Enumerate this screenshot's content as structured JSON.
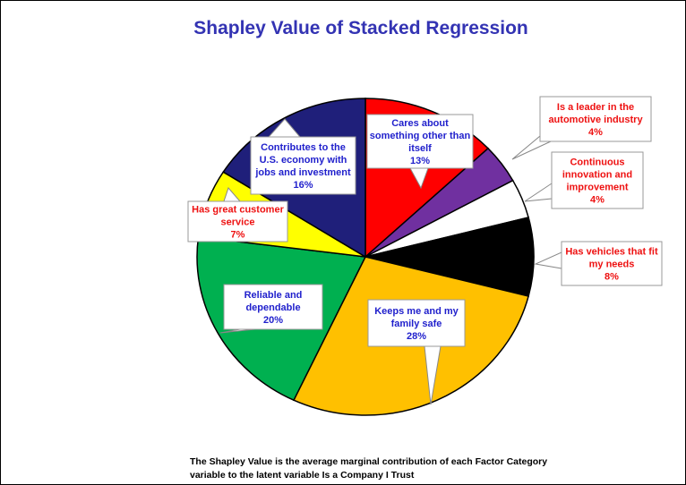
{
  "chart_data": {
    "type": "pie",
    "title": "Shapley Value of Stacked Regression",
    "slices": [
      {
        "label": "Cares about something other than itself",
        "lines": [
          "Cares about",
          "something other than",
          "itself"
        ],
        "value_label": "13%",
        "value": 13,
        "color": "#ff0000",
        "text_color": "#1f1fcc"
      },
      {
        "label": "Is a leader in the automotive industry",
        "lines": [
          "Is a leader in the",
          "automotive industry"
        ],
        "value_label": "4%",
        "value": 4,
        "color": "#7030a0",
        "text_color": "#ee1111"
      },
      {
        "label": "Continuous innovation and improvement",
        "lines": [
          "Continuous",
          "innovation and",
          "improvement"
        ],
        "value_label": "4%",
        "value": 4,
        "color": "#ffffff",
        "text_color": "#ee1111"
      },
      {
        "label": "Has vehicles that fit my needs",
        "lines": [
          "Has vehicles that fit",
          "my needs"
        ],
        "value_label": "8%",
        "value": 8,
        "color": "#000000",
        "text_color": "#ee1111"
      },
      {
        "label": "Keeps me and my family safe",
        "lines": [
          "Keeps me and my",
          "family safe"
        ],
        "value_label": "28%",
        "value": 28,
        "color": "#ffc000",
        "text_color": "#1f1fcc"
      },
      {
        "label": "Reliable and dependable",
        "lines": [
          "Reliable and",
          "dependable"
        ],
        "value_label": "20%",
        "value": 20,
        "color": "#00b050",
        "text_color": "#1f1fcc"
      },
      {
        "label": "Has great customer service",
        "lines": [
          "Has great customer",
          "service"
        ],
        "value_label": "7%",
        "value": 7,
        "color": "#ffff00",
        "text_color": "#ee1111"
      },
      {
        "label": "Contributes to the U.S. economy with jobs and investment",
        "lines": [
          "Contributes to the",
          "U.S. economy with",
          "jobs and investment"
        ],
        "value_label": "16%",
        "value": 16,
        "color": "#1f1f7a",
        "text_color": "#1f1fcc"
      }
    ],
    "footnote": "The Shapley Value is the average marginal contribution of each Factor Category variable to the latent variable Is a Company I Trust"
  }
}
